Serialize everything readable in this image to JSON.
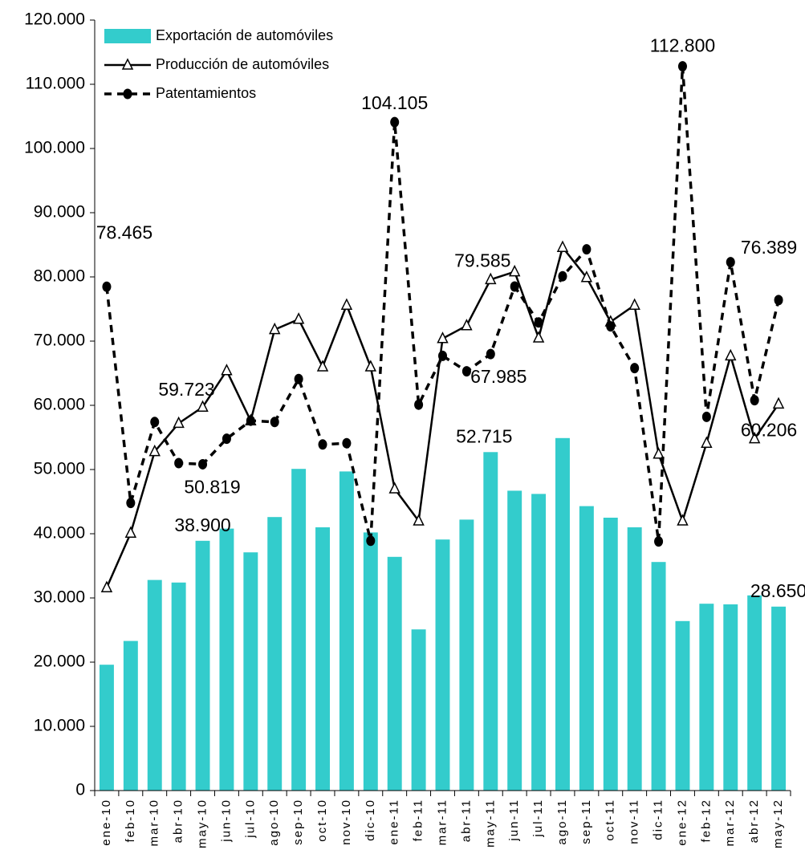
{
  "chart_data": {
    "type": "combo",
    "categories": [
      "ene-10",
      "feb-10",
      "mar-10",
      "abr-10",
      "may-10",
      "jun-10",
      "jul-10",
      "ago-10",
      "sep-10",
      "oct-10",
      "nov-10",
      "dic-10",
      "ene-11",
      "feb-11",
      "mar-11",
      "abr-11",
      "may-11",
      "jun-11",
      "jul-11",
      "ago-11",
      "sep-11",
      "oct-11",
      "nov-11",
      "dic-11",
      "ene-12",
      "feb-12",
      "mar-12",
      "abr-12",
      "may-12"
    ],
    "ylim": [
      0,
      120000
    ],
    "yticks": [
      0,
      {
        "value": 10000,
        "label": "10.000"
      },
      {
        "value": 20000,
        "label": "20.000"
      },
      {
        "value": 30000,
        "label": "30.000"
      },
      {
        "value": 40000,
        "label": "40.000"
      },
      {
        "value": 50000,
        "label": "50.000"
      },
      {
        "value": 60000,
        "label": "60.000"
      },
      {
        "value": 70000,
        "label": "70.000"
      },
      {
        "value": 80000,
        "label": "80.000"
      },
      {
        "value": 90000,
        "label": "90.000"
      },
      {
        "value": 100000,
        "label": "100.000"
      },
      {
        "value": 110000,
        "label": "110.000"
      },
      {
        "value": 120000,
        "label": "120.000"
      }
    ],
    "legend": "top-left",
    "series": [
      {
        "name": "Exportación de automóviles",
        "type": "bar",
        "color": "#33cccc",
        "values": [
          19600,
          23300,
          32800,
          32400,
          38900,
          40800,
          37100,
          42600,
          50100,
          41000,
          49700,
          40200,
          36400,
          25100,
          39100,
          42200,
          52715,
          46700,
          46200,
          54900,
          44300,
          42500,
          41000,
          35600,
          26400,
          29100,
          29000,
          30400,
          28650
        ],
        "value_labels": [
          null,
          null,
          null,
          null,
          "38.900",
          null,
          null,
          null,
          null,
          null,
          null,
          null,
          null,
          null,
          null,
          null,
          "52.715",
          null,
          null,
          null,
          null,
          null,
          null,
          null,
          null,
          null,
          null,
          null,
          "28.650"
        ]
      },
      {
        "name": "Producción de automóviles",
        "type": "line",
        "color": "#000000",
        "dashed": false,
        "marker": "triangle",
        "values": [
          31600,
          40100,
          52800,
          57200,
          59723,
          65400,
          57600,
          71800,
          73400,
          66000,
          75600,
          66000,
          47000,
          42000,
          70400,
          72400,
          79585,
          80800,
          70500,
          84600,
          79900,
          73000,
          75600,
          52400,
          42000,
          54100,
          67700,
          54800,
          60206
        ],
        "value_labels": [
          null,
          null,
          null,
          null,
          "59.723",
          null,
          null,
          null,
          null,
          null,
          null,
          null,
          null,
          null,
          null,
          null,
          "79.585",
          null,
          null,
          null,
          null,
          null,
          null,
          null,
          null,
          null,
          null,
          null,
          "60.206"
        ]
      },
      {
        "name": "Patentamientos",
        "type": "line",
        "color": "#000000",
        "dashed": true,
        "marker": "circle",
        "values": [
          78465,
          44800,
          57400,
          51000,
          50819,
          54800,
          57600,
          57400,
          64100,
          53900,
          54100,
          38900,
          104105,
          60100,
          67700,
          65300,
          67985,
          78500,
          72900,
          80100,
          84300,
          72300,
          65800,
          38800,
          112800,
          58200,
          82300,
          60800,
          76389
        ],
        "value_labels": [
          "78.465",
          null,
          null,
          null,
          "50.819",
          null,
          null,
          null,
          null,
          null,
          null,
          null,
          "104.105",
          null,
          null,
          null,
          "67.985",
          null,
          null,
          null,
          null,
          null,
          null,
          null,
          "112.800",
          null,
          null,
          null,
          "76.389"
        ]
      }
    ]
  }
}
